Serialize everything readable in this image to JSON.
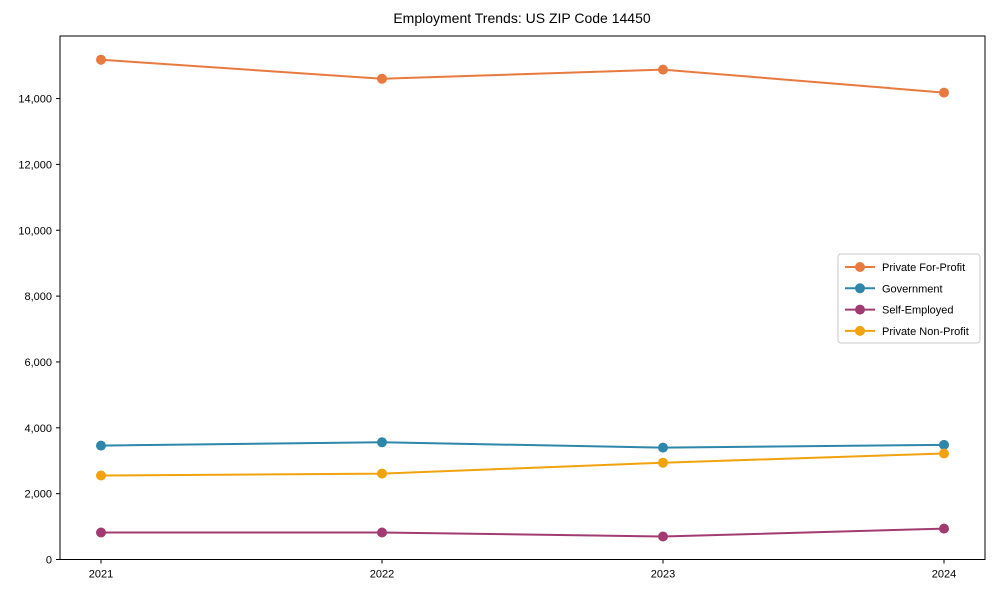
{
  "title": "Employment Trends: US ZIP Code 14450",
  "chart_data": {
    "type": "line",
    "title": "Employment Trends: US ZIP Code 14450",
    "xlabel": "",
    "ylabel": "",
    "x_labels": [
      "2021",
      "2022",
      "2023",
      "2024"
    ],
    "x": [
      2021,
      2022,
      2023,
      2024
    ],
    "series": [
      {
        "name": "Private For-Profit",
        "color": "#e8793f",
        "values": [
          15180,
          14600,
          14880,
          14180
        ]
      },
      {
        "name": "Government",
        "color": "#2e86ab",
        "values": [
          3460,
          3560,
          3400,
          3480
        ]
      },
      {
        "name": "Self-Employed",
        "color": "#a23b72",
        "values": [
          820,
          820,
          700,
          940
        ]
      },
      {
        "name": "Private Non-Profit",
        "color": "#f1a20c",
        "values": [
          2550,
          2610,
          2940,
          3220
        ]
      }
    ],
    "ylim": [
      0,
      15900
    ],
    "yticks": [
      0,
      2000,
      4000,
      6000,
      8000,
      10000,
      12000,
      14000
    ],
    "ytick_labels": [
      "0",
      "2,000",
      "4,000",
      "6,000",
      "8,000",
      "10,000",
      "12,000",
      "14,000"
    ],
    "grid": false,
    "legend_position": "center right",
    "axis_color": "#000000",
    "legend_border_color": "#c9c9c9",
    "legend_background": "#ffffff"
  }
}
